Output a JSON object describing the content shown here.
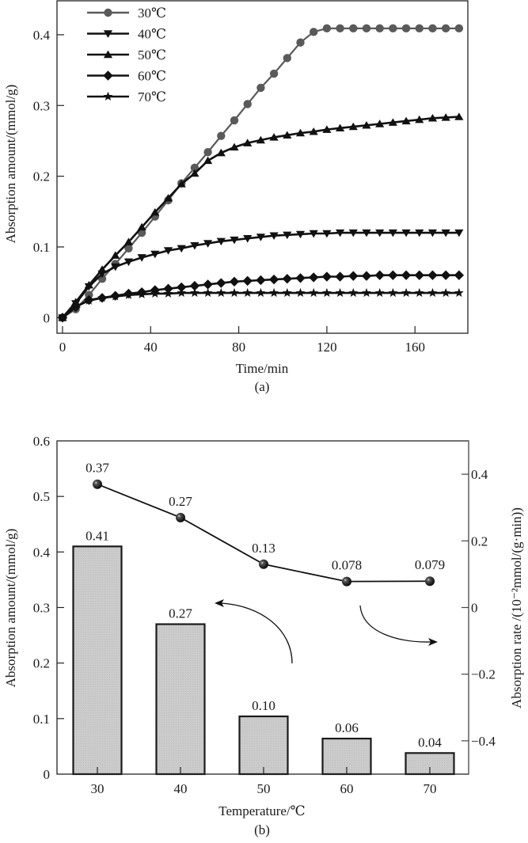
{
  "chart_data": [
    {
      "id": "a",
      "type": "line",
      "panel_label": "(a)",
      "title": "",
      "xlabel": "Time/min",
      "ylabel": "Absorption amount/(mmol/g)",
      "xlim": [
        -2.5,
        184
      ],
      "ylim": [
        -0.022,
        0.448
      ],
      "xticks": [
        0,
        40,
        80,
        120,
        160
      ],
      "xtick_labels": [
        "0",
        "40",
        "80",
        "120",
        "160"
      ],
      "yticks": [
        0,
        0.1,
        0.2,
        0.3,
        0.4
      ],
      "ytick_labels": [
        "0",
        "0.1",
        "0.2",
        "0.3",
        "0.4"
      ],
      "grid": false,
      "legend_position": "top-left",
      "x": [
        0,
        6,
        12,
        18,
        24,
        30,
        36,
        42,
        48,
        54,
        60,
        66,
        72,
        78,
        84,
        90,
        96,
        102,
        108,
        114,
        120,
        126,
        132,
        138,
        144,
        150,
        156,
        162,
        168,
        174,
        180
      ],
      "series": [
        {
          "name": "30℃",
          "marker": "circle",
          "color": "#5a5a5a",
          "values": [
            0,
            0.012,
            0.032,
            0.055,
            0.076,
            0.098,
            0.12,
            0.143,
            0.166,
            0.19,
            0.212,
            0.234,
            0.257,
            0.279,
            0.302,
            0.325,
            0.345,
            0.367,
            0.389,
            0.404,
            0.409,
            0.409,
            0.409,
            0.409,
            0.409,
            0.409,
            0.409,
            0.409,
            0.409,
            0.409,
            0.409
          ]
        },
        {
          "name": "40℃",
          "marker": "triangle-down",
          "color": "#111111",
          "values": [
            0,
            0.02,
            0.044,
            0.062,
            0.072,
            0.079,
            0.085,
            0.09,
            0.095,
            0.098,
            0.102,
            0.105,
            0.108,
            0.11,
            0.112,
            0.114,
            0.116,
            0.117,
            0.118,
            0.119,
            0.119,
            0.12,
            0.12,
            0.12,
            0.12,
            0.12,
            0.12,
            0.12,
            0.12,
            0.12,
            0.12
          ]
        },
        {
          "name": "50℃",
          "marker": "triangle-up",
          "color": "#111111",
          "values": [
            0,
            0.022,
            0.046,
            0.068,
            0.088,
            0.107,
            0.128,
            0.149,
            0.169,
            0.189,
            0.204,
            0.222,
            0.233,
            0.241,
            0.247,
            0.251,
            0.255,
            0.258,
            0.261,
            0.263,
            0.266,
            0.268,
            0.27,
            0.272,
            0.274,
            0.276,
            0.278,
            0.28,
            0.282,
            0.283,
            0.284
          ]
        },
        {
          "name": "60℃",
          "marker": "diamond",
          "color": "#111111",
          "values": [
            0,
            0.015,
            0.025,
            0.028,
            0.031,
            0.034,
            0.036,
            0.039,
            0.041,
            0.043,
            0.045,
            0.047,
            0.049,
            0.051,
            0.052,
            0.053,
            0.054,
            0.055,
            0.056,
            0.057,
            0.058,
            0.058,
            0.059,
            0.059,
            0.06,
            0.06,
            0.06,
            0.06,
            0.06,
            0.06,
            0.06
          ]
        },
        {
          "name": "70℃",
          "marker": "star",
          "color": "#111111",
          "values": [
            0,
            0.016,
            0.024,
            0.028,
            0.03,
            0.032,
            0.033,
            0.034,
            0.034,
            0.035,
            0.035,
            0.035,
            0.035,
            0.035,
            0.035,
            0.035,
            0.035,
            0.035,
            0.035,
            0.035,
            0.035,
            0.035,
            0.035,
            0.035,
            0.035,
            0.035,
            0.035,
            0.035,
            0.035,
            0.035,
            0.035
          ]
        }
      ]
    },
    {
      "id": "b",
      "type": "bar",
      "panel_label": "(b)",
      "title": "",
      "xlabel": "Temperature/℃",
      "ylabel": "Absorption amount/(mmol/g)",
      "ylabel_right": "Absorption rate /(10⁻²mmol/(g·min))",
      "categories": [
        "30",
        "40",
        "50",
        "60",
        "70"
      ],
      "ylim": [
        0,
        0.6
      ],
      "yticks": [
        0,
        0.1,
        0.2,
        0.3,
        0.4,
        0.5,
        0.6
      ],
      "ytick_labels": [
        "0",
        "0.1",
        "0.2",
        "0.3",
        "0.4",
        "0.5",
        "0.6"
      ],
      "ylim_right": [
        -0.5,
        0.5
      ],
      "yticks_right": [
        -0.4,
        -0.2,
        0,
        0.2,
        0.4
      ],
      "ytick_labels_right": [
        "−0.4",
        "−0.2",
        "0",
        "0.2",
        "0.4"
      ],
      "grid": false,
      "bar_color": "#cbcbcb",
      "series": [
        {
          "name": "Absorption amount",
          "type": "bar",
          "axis": "left",
          "values": [
            0.41,
            0.27,
            0.104,
            0.064,
            0.038
          ],
          "labels": [
            "0.41",
            "0.27",
            "0.10",
            "0.06",
            "0.04"
          ]
        },
        {
          "name": "Absorption rate",
          "type": "line",
          "axis": "right",
          "marker": "sphere",
          "values": [
            0.37,
            0.27,
            0.13,
            0.078,
            0.079
          ],
          "labels": [
            "0.37",
            "0.27",
            "0.13",
            "0.078",
            "0.079"
          ]
        }
      ],
      "annotations": [
        {
          "type": "arrow",
          "direction": "left",
          "meaning": "bars read on left axis"
        },
        {
          "type": "arrow",
          "direction": "right",
          "meaning": "line reads on right axis"
        }
      ]
    }
  ]
}
